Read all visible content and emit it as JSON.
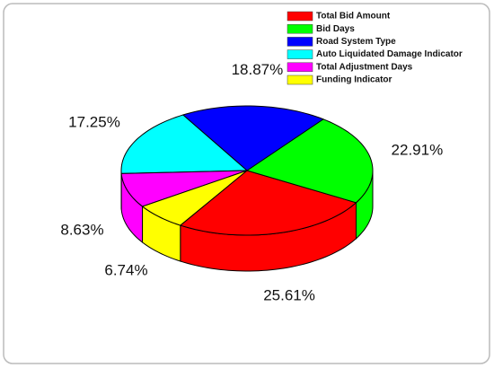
{
  "chart_data": {
    "type": "pie3d",
    "categories": [
      "Total Bid Amount",
      "Bid Days",
      "Road System Type",
      "Auto Liquidated Damage Indicator",
      "Total Adjustment Days",
      "Funding Indicator"
    ],
    "values": [
      25.61,
      22.91,
      18.87,
      17.25,
      8.63,
      6.74
    ],
    "value_labels": [
      "25.61%",
      "22.91%",
      "18.87%",
      "17.25%",
      "8.63%",
      "6.74%"
    ],
    "colors": [
      "#ff0000",
      "#00ff00",
      "#0000ff",
      "#00ffff",
      "#ff00ff",
      "#ffff00"
    ],
    "legend": "top-right"
  }
}
